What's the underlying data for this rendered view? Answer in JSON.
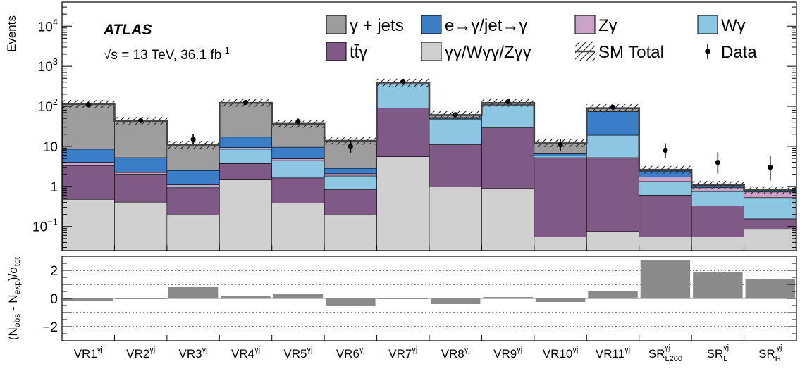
{
  "chart_data": [
    {
      "type": "bar",
      "stacked": true,
      "log_y": true,
      "ylim": [
        0.025,
        40000
      ],
      "ylabel": "Events",
      "yticks": [
        {
          "value": 0.1,
          "base": "10",
          "exp": "−1"
        },
        {
          "value": 1,
          "label": "1"
        },
        {
          "value": 10,
          "label": "10"
        },
        {
          "value": 100,
          "base": "10",
          "exp": "2"
        },
        {
          "value": 1000,
          "base": "10",
          "exp": "3"
        },
        {
          "value": 10000,
          "base": "10",
          "exp": "4"
        }
      ],
      "categories": [
        {
          "base": "VR1",
          "sup": "γj"
        },
        {
          "base": "VR2",
          "sup": "γj"
        },
        {
          "base": "VR3",
          "sup": "γj"
        },
        {
          "base": "VR4",
          "sup": "γj"
        },
        {
          "base": "VR5",
          "sup": "γj"
        },
        {
          "base": "VR6",
          "sup": "γj"
        },
        {
          "base": "VR7",
          "sup": "γj"
        },
        {
          "base": "VR8",
          "sup": "γj"
        },
        {
          "base": "VR9",
          "sup": "γj"
        },
        {
          "base": "VR10",
          "sup": "γj"
        },
        {
          "base": "VR11",
          "sup": "γj"
        },
        {
          "base": "SR",
          "sup": "γj",
          "sub": "L200"
        },
        {
          "base": "SR",
          "sup": "γj",
          "sub": "L"
        },
        {
          "base": "SR",
          "sup": "γj",
          "sub": "H"
        }
      ],
      "series": [
        {
          "name": "γγ/Wγγ/Zγγ",
          "color": "#d0d0d0",
          "values": [
            0.45,
            0.38,
            0.17,
            1.5,
            0.36,
            0.17,
            5.5,
            0.95,
            0.88,
            0.03,
            0.05,
            0.03,
            0.03,
            0.06
          ]
        },
        {
          "name": "tt̄γ",
          "color": "#7f5a87",
          "values": [
            2.85,
            1.52,
            0.73,
            2.2,
            1.24,
            0.63,
            84.5,
            10.05,
            28.1,
            5.17,
            5.15,
            0.55,
            0.27,
            0.07
          ]
        },
        {
          "name": "Wγ",
          "color": "#8dc6e2",
          "values": [
            0,
            0.1,
            0.05,
            4.8,
            2.8,
            1.0,
            265,
            37,
            79,
            0.6,
            13.8,
            0.72,
            0.42,
            0.37
          ]
        },
        {
          "name": "Zγ",
          "color": "#c9a3c9",
          "values": [
            0.7,
            0.2,
            0.12,
            0.8,
            0.5,
            0.25,
            0,
            0.5,
            0,
            0,
            0,
            0.4,
            0.18,
            0.2
          ]
        },
        {
          "name": "e→γ/jet→γ",
          "color": "#3b7ec8",
          "values": [
            4.5,
            3.0,
            1.4,
            7.7,
            4.6,
            0.75,
            0,
            4.0,
            1.5,
            0.7,
            55,
            0.7,
            0.12,
            0.05
          ]
        },
        {
          "name": "γ + jets",
          "color": "#9d9d9d",
          "values": [
            105,
            38,
            8.5,
            105,
            27,
            11,
            36,
            8,
            12,
            5.5,
            16,
            0.2,
            0.08,
            0.05
          ]
        }
      ],
      "sm_total": [
        114,
        43.2,
        11,
        122,
        36.5,
        13.8,
        391,
        60.5,
        121.5,
        12,
        90,
        2.6,
        1.1,
        0.8
      ],
      "sm_total_name": "SM Total",
      "data": {
        "name": "Data",
        "values": [
          110,
          44,
          15,
          125,
          42,
          10,
          420,
          62,
          130,
          11,
          95,
          8,
          4,
          3
        ],
        "err_low": [
          10,
          6.5,
          3.8,
          11,
          6.4,
          3.1,
          20,
          7.8,
          11.3,
          3.3,
          9.7,
          2.8,
          1.9,
          1.6
        ],
        "err_high": [
          11,
          7.7,
          5.1,
          12,
          7.6,
          4.3,
          21,
          9,
          12.5,
          4.5,
          10.9,
          4.0,
          3.1,
          2.9
        ]
      },
      "legend_placement": "top-right",
      "annotations": {
        "experiment": "ATLAS",
        "energy_sqrt": "√s",
        "energy_rest": " = 13 TeV, 36.1 fb",
        "energy_exp": "-1"
      }
    },
    {
      "type": "bar",
      "ylim": [
        -3,
        3
      ],
      "yticks": [
        -2,
        0,
        2
      ],
      "ytick_labels": [
        "−2",
        "0",
        "2"
      ],
      "ylabel_parts": {
        "p1": "(N",
        "s1": "obs",
        "p2": " - N",
        "s2": "exp",
        "p3": ")/σ",
        "s3": "tot"
      },
      "values": [
        -0.15,
        -0.05,
        0.8,
        0.2,
        0.35,
        -0.55,
        -0.03,
        -0.4,
        0.1,
        -0.25,
        0.5,
        2.75,
        1.85,
        1.4
      ],
      "bar_color": "#8a8a8a",
      "dotted_lines": [
        -2,
        -1,
        1,
        2
      ]
    }
  ],
  "legend": [
    {
      "label": "γ + jets",
      "kind": "fill",
      "color": "#9d9d9d"
    },
    {
      "label": "e→γ/jet→γ",
      "kind": "fill",
      "color": "#3b7ec8"
    },
    {
      "label": "Zγ",
      "kind": "fill",
      "color": "#c9a3c9"
    },
    {
      "label": "Wγ",
      "kind": "fill",
      "color": "#8dc6e2"
    },
    {
      "label": "tt̄γ",
      "kind": "fill",
      "color": "#7f5a87"
    },
    {
      "label": "γγ/Wγγ/Zγγ",
      "kind": "fill",
      "color": "#d0d0d0"
    },
    {
      "label": "SM Total",
      "kind": "hatch"
    },
    {
      "label": "Data",
      "kind": "marker"
    }
  ]
}
